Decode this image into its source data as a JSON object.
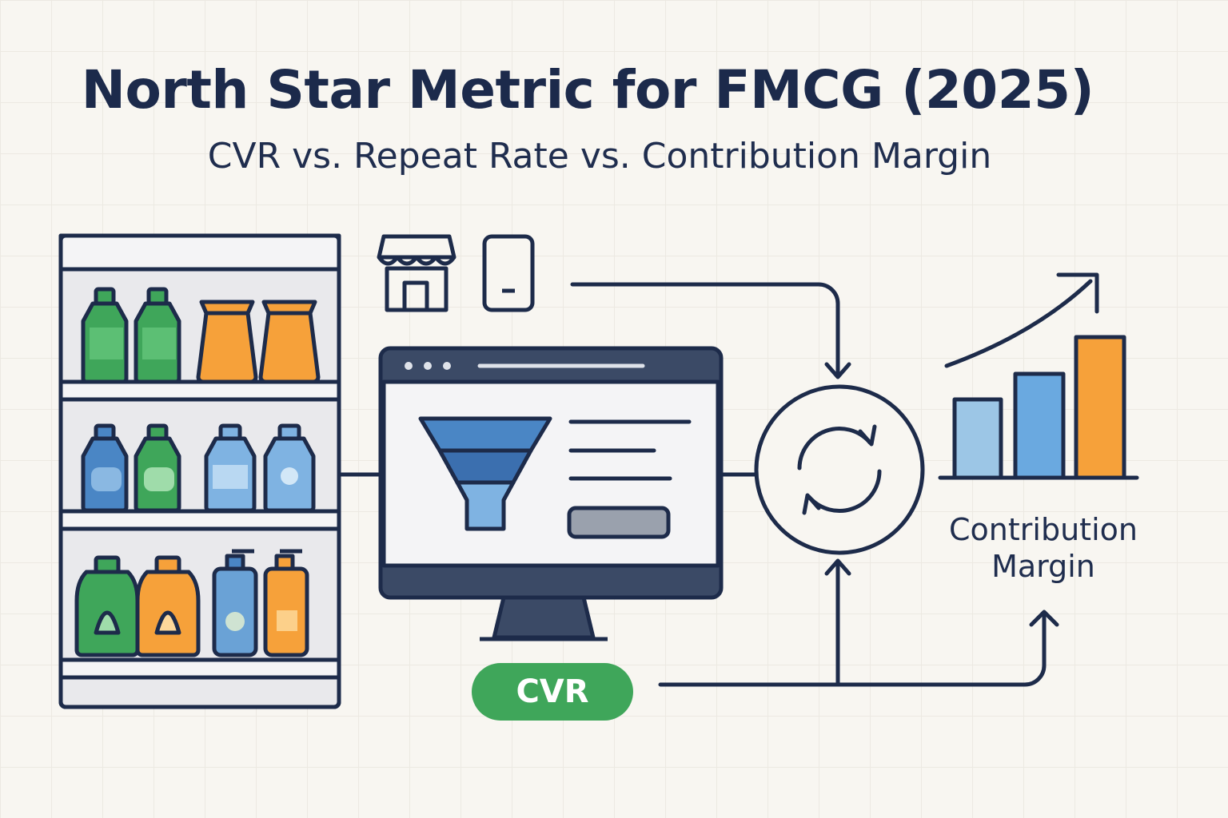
{
  "title": "North Star Metric for FMCG (2025)",
  "subtitle": "CVR vs. Repeat Rate vs. Contribution Margin",
  "labels": {
    "contribution_margin_line1": "Contribution",
    "contribution_margin_line2": "Margin",
    "cvr": "CVR"
  },
  "icons": [
    "store-shelf-icon",
    "storefront-icon",
    "mobile-phone-icon",
    "browser-window-icon",
    "funnel-icon",
    "refresh-cycle-icon",
    "bar-chart-icon",
    "trend-arrow-icon"
  ],
  "colors": {
    "ink": "#1d2b4a",
    "green": "#3fa65a",
    "orange": "#f6a13a",
    "blue": "#4a86c5",
    "light_blue": "#9cc6e6",
    "background": "#f8f6f1"
  }
}
